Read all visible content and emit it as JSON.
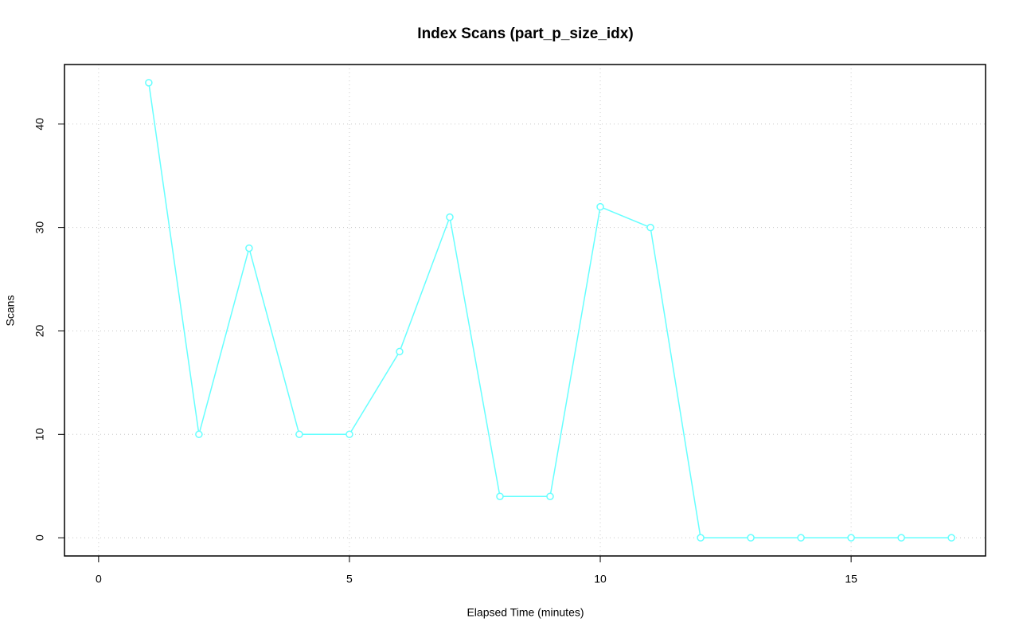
{
  "chart_data": {
    "type": "line",
    "title": "Index Scans (part_p_size_idx)",
    "x_label": "Elapsed Time (minutes)",
    "y_label": "Scans",
    "x": [
      1,
      2,
      3,
      4,
      5,
      6,
      7,
      8,
      9,
      10,
      11,
      12,
      13,
      14,
      15,
      16,
      17
    ],
    "series": [
      {
        "name": "Scans",
        "color": "#66ffff",
        "values": [
          44,
          10,
          28,
          10,
          10,
          18,
          31,
          4,
          4,
          32,
          30,
          0,
          0,
          0,
          0,
          0,
          0
        ]
      }
    ],
    "xlim": [
      -0.68,
      17.68
    ],
    "xticks": [
      0,
      5,
      10,
      15
    ],
    "ylim": [
      -1.76,
      45.76
    ],
    "yticks": [
      0,
      10,
      20,
      30,
      40
    ],
    "grid": true
  }
}
